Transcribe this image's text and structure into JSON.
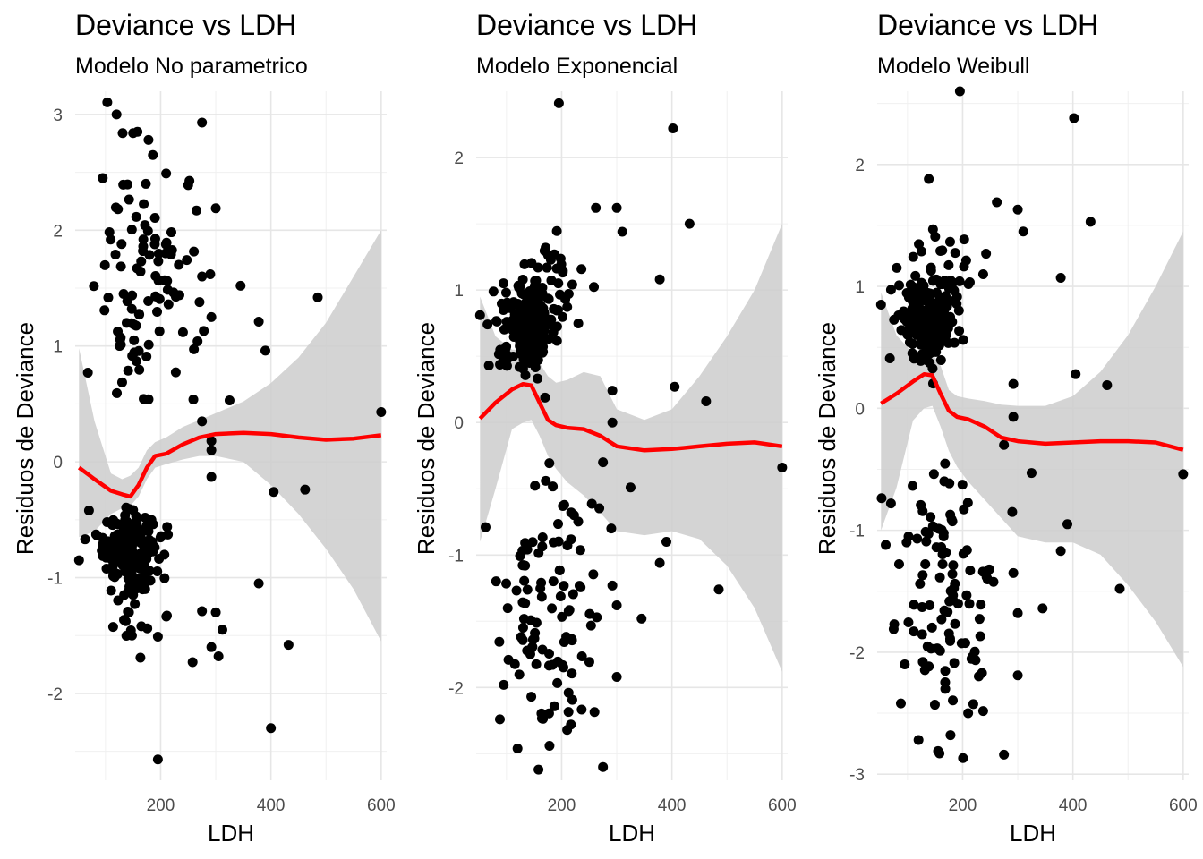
{
  "chart_data": [
    {
      "type": "scatter",
      "title": "Deviance vs  LDH",
      "subtitle": "Modelo No parametrico",
      "xlabel": "LDH",
      "ylabel": "Residuos de Deviance",
      "xlim": [
        45,
        610
      ],
      "ylim": [
        -2.75,
        3.2
      ],
      "x_ticks": [
        200,
        400,
        600
      ],
      "y_ticks": [
        -2,
        -1,
        0,
        1,
        2,
        3
      ],
      "grid": true,
      "colors": {
        "points": "#000000",
        "smooth": "#ff0000",
        "band": "#cccccc"
      },
      "clusters": [
        {
          "n": 190,
          "cx": 140,
          "sx": 22,
          "cy": -0.72,
          "sy": 0.14
        },
        {
          "n": 40,
          "cx": 160,
          "sx": 42,
          "cy": -1.05,
          "sy": 0.28
        },
        {
          "n": 70,
          "cx": 175,
          "sx": 45,
          "cy": 1.35,
          "sy": 0.5
        },
        {
          "n": 25,
          "cx": 180,
          "sx": 40,
          "cy": 2.15,
          "sy": 0.35
        }
      ],
      "points": [
        {
          "x": 52,
          "y": -0.85
        },
        {
          "x": 70,
          "y": -0.42
        },
        {
          "x": 68,
          "y": 0.77
        },
        {
          "x": 120,
          "y": 3.0
        },
        {
          "x": 275,
          "y": 2.93
        },
        {
          "x": 158,
          "y": 2.85
        },
        {
          "x": 178,
          "y": 2.78
        },
        {
          "x": 95,
          "y": 2.45
        },
        {
          "x": 210,
          "y": 2.49
        },
        {
          "x": 250,
          "y": 2.39
        },
        {
          "x": 300,
          "y": 2.19
        },
        {
          "x": 345,
          "y": 1.52
        },
        {
          "x": 485,
          "y": 1.42
        },
        {
          "x": 378,
          "y": 1.21
        },
        {
          "x": 390,
          "y": 0.96
        },
        {
          "x": 325,
          "y": 0.53
        },
        {
          "x": 275,
          "y": 0.35
        },
        {
          "x": 292,
          "y": 0.18
        },
        {
          "x": 292,
          "y": 0.1
        },
        {
          "x": 292,
          "y": -0.13
        },
        {
          "x": 600,
          "y": 0.43
        },
        {
          "x": 405,
          "y": -0.26
        },
        {
          "x": 462,
          "y": -0.24
        },
        {
          "x": 378,
          "y": -1.05
        },
        {
          "x": 432,
          "y": -1.58
        },
        {
          "x": 400,
          "y": -2.3
        },
        {
          "x": 195,
          "y": -2.57
        },
        {
          "x": 258,
          "y": -1.73
        },
        {
          "x": 305,
          "y": -1.68
        },
        {
          "x": 292,
          "y": -1.6
        },
        {
          "x": 312,
          "y": -1.45
        },
        {
          "x": 275,
          "y": -1.29
        },
        {
          "x": 300,
          "y": -1.3
        },
        {
          "x": 148,
          "y": -1.5
        },
        {
          "x": 195,
          "y": -1.51
        },
        {
          "x": 165,
          "y": -1.42
        },
        {
          "x": 292,
          "y": 1.25
        },
        {
          "x": 290,
          "y": 1.62
        },
        {
          "x": 275,
          "y": 1.6
        },
        {
          "x": 265,
          "y": 2.17
        }
      ],
      "smooth": {
        "x": [
          52,
          80,
          110,
          130,
          145,
          160,
          175,
          190,
          210,
          240,
          270,
          300,
          350,
          400,
          450,
          500,
          550,
          600
        ],
        "y": [
          -0.05,
          -0.15,
          -0.25,
          -0.28,
          -0.3,
          -0.2,
          -0.05,
          0.05,
          0.07,
          0.15,
          0.21,
          0.24,
          0.25,
          0.24,
          0.21,
          0.19,
          0.2,
          0.23
        ],
        "lo": [
          -0.65,
          -0.6,
          -0.45,
          -0.4,
          -0.38,
          -0.3,
          -0.15,
          -0.05,
          -0.02,
          0.02,
          0.05,
          0.05,
          0.0,
          -0.2,
          -0.45,
          -0.75,
          -1.1,
          -1.55
        ],
        "hi": [
          0.98,
          0.35,
          -0.1,
          -0.15,
          -0.12,
          -0.05,
          0.1,
          0.17,
          0.21,
          0.3,
          0.36,
          0.42,
          0.52,
          0.68,
          0.9,
          1.2,
          1.6,
          2.0
        ]
      }
    },
    {
      "type": "scatter",
      "title": "Deviance vs  LDH",
      "subtitle": "Modelo Exponencial",
      "xlabel": "LDH",
      "ylabel": "Residuos de Deviance",
      "xlim": [
        45,
        610
      ],
      "ylim": [
        -2.7,
        2.5
      ],
      "x_ticks": [
        200,
        400,
        600
      ],
      "y_ticks": [
        -2,
        -1,
        0,
        1,
        2
      ],
      "grid": true,
      "colors": {
        "points": "#000000",
        "smooth": "#ff0000",
        "band": "#cccccc"
      },
      "clusters": [
        {
          "n": 200,
          "cx": 140,
          "sx": 24,
          "cy": 0.72,
          "sy": 0.15
        },
        {
          "n": 45,
          "cx": 160,
          "sx": 40,
          "cy": 1.05,
          "sy": 0.22
        },
        {
          "n": 80,
          "cx": 170,
          "sx": 45,
          "cy": -1.3,
          "sy": 0.42
        },
        {
          "n": 20,
          "cx": 180,
          "sx": 40,
          "cy": -2.05,
          "sy": 0.25
        }
      ],
      "points": [
        {
          "x": 52,
          "y": 0.81
        },
        {
          "x": 68,
          "y": 0.43
        },
        {
          "x": 62,
          "y": -0.79
        },
        {
          "x": 195,
          "y": 2.41
        },
        {
          "x": 402,
          "y": 2.22
        },
        {
          "x": 432,
          "y": 1.5
        },
        {
          "x": 300,
          "y": 1.62
        },
        {
          "x": 262,
          "y": 1.62
        },
        {
          "x": 310,
          "y": 1.44
        },
        {
          "x": 378,
          "y": 1.08
        },
        {
          "x": 405,
          "y": 0.27
        },
        {
          "x": 462,
          "y": 0.16
        },
        {
          "x": 292,
          "y": 0.24
        },
        {
          "x": 292,
          "y": 0.0
        },
        {
          "x": 275,
          "y": -0.3
        },
        {
          "x": 325,
          "y": -0.49
        },
        {
          "x": 600,
          "y": -0.34
        },
        {
          "x": 390,
          "y": -0.9
        },
        {
          "x": 378,
          "y": -1.06
        },
        {
          "x": 485,
          "y": -1.26
        },
        {
          "x": 345,
          "y": -1.48
        },
        {
          "x": 275,
          "y": -2.6
        },
        {
          "x": 120,
          "y": -2.46
        },
        {
          "x": 158,
          "y": -2.62
        },
        {
          "x": 178,
          "y": -2.44
        },
        {
          "x": 210,
          "y": -2.32
        },
        {
          "x": 300,
          "y": -1.92
        },
        {
          "x": 290,
          "y": -0.8
        },
        {
          "x": 292,
          "y": -1.23
        },
        {
          "x": 300,
          "y": -1.38
        },
        {
          "x": 88,
          "y": -2.24
        },
        {
          "x": 95,
          "y": -1.98
        }
      ],
      "smooth": {
        "x": [
          52,
          80,
          110,
          130,
          145,
          160,
          175,
          190,
          210,
          240,
          270,
          300,
          350,
          400,
          450,
          500,
          550,
          600
        ],
        "y": [
          0.03,
          0.15,
          0.25,
          0.29,
          0.28,
          0.15,
          0.02,
          -0.02,
          -0.04,
          -0.05,
          -0.1,
          -0.18,
          -0.21,
          -0.2,
          -0.18,
          -0.16,
          -0.15,
          -0.18
        ],
        "lo": [
          -0.9,
          -0.5,
          -0.05,
          0.0,
          0.02,
          -0.1,
          -0.25,
          -0.35,
          -0.45,
          -0.55,
          -0.68,
          -0.82,
          -0.85,
          -0.82,
          -0.88,
          -1.08,
          -1.4,
          -1.88
        ],
        "hi": [
          0.95,
          0.65,
          0.55,
          0.55,
          0.55,
          0.45,
          0.35,
          0.3,
          0.32,
          0.38,
          0.35,
          0.1,
          0.02,
          0.1,
          0.35,
          0.65,
          1.0,
          1.5
        ]
      }
    },
    {
      "type": "scatter",
      "title": "Deviance vs  LDH",
      "subtitle": "Modelo Weibull",
      "xlabel": "LDH",
      "ylabel": "Residuos de Deviance",
      "xlim": [
        45,
        610
      ],
      "ylim": [
        -3.05,
        2.6
      ],
      "x_ticks": [
        200,
        400,
        600
      ],
      "y_ticks": [
        -3,
        -2,
        -1,
        0,
        1,
        2
      ],
      "grid": true,
      "colors": {
        "points": "#000000",
        "smooth": "#ff0000",
        "band": "#cccccc"
      },
      "clusters": [
        {
          "n": 200,
          "cx": 140,
          "sx": 24,
          "cy": 0.72,
          "sy": 0.16
        },
        {
          "n": 45,
          "cx": 160,
          "sx": 40,
          "cy": 1.05,
          "sy": 0.24
        },
        {
          "n": 80,
          "cx": 170,
          "sx": 45,
          "cy": -1.35,
          "sy": 0.45
        },
        {
          "n": 20,
          "cx": 180,
          "sx": 40,
          "cy": -2.2,
          "sy": 0.3
        }
      ],
      "points": [
        {
          "x": 52,
          "y": 0.85
        },
        {
          "x": 68,
          "y": 0.41
        },
        {
          "x": 70,
          "y": -0.78
        },
        {
          "x": 195,
          "y": 2.6
        },
        {
          "x": 402,
          "y": 2.38
        },
        {
          "x": 432,
          "y": 1.53
        },
        {
          "x": 300,
          "y": 1.63
        },
        {
          "x": 262,
          "y": 1.69
        },
        {
          "x": 310,
          "y": 1.45
        },
        {
          "x": 378,
          "y": 1.07
        },
        {
          "x": 405,
          "y": 0.28
        },
        {
          "x": 462,
          "y": 0.19
        },
        {
          "x": 292,
          "y": 0.2
        },
        {
          "x": 292,
          "y": -0.07
        },
        {
          "x": 275,
          "y": -0.3
        },
        {
          "x": 325,
          "y": -0.53
        },
        {
          "x": 600,
          "y": -0.54
        },
        {
          "x": 390,
          "y": -0.95
        },
        {
          "x": 378,
          "y": -1.17
        },
        {
          "x": 485,
          "y": -1.48
        },
        {
          "x": 345,
          "y": -1.64
        },
        {
          "x": 275,
          "y": -2.84
        },
        {
          "x": 120,
          "y": -2.72
        },
        {
          "x": 158,
          "y": -2.83
        },
        {
          "x": 178,
          "y": -2.68
        },
        {
          "x": 210,
          "y": -2.5
        },
        {
          "x": 300,
          "y": -2.19
        },
        {
          "x": 290,
          "y": -0.85
        },
        {
          "x": 292,
          "y": -1.35
        },
        {
          "x": 300,
          "y": -1.68
        },
        {
          "x": 88,
          "y": -2.42
        },
        {
          "x": 95,
          "y": -2.1
        }
      ],
      "smooth": {
        "x": [
          52,
          80,
          110,
          130,
          145,
          160,
          175,
          190,
          210,
          240,
          270,
          300,
          350,
          400,
          450,
          500,
          550,
          600
        ],
        "y": [
          0.04,
          0.12,
          0.22,
          0.28,
          0.27,
          0.12,
          -0.02,
          -0.07,
          -0.09,
          -0.15,
          -0.24,
          -0.27,
          -0.29,
          -0.28,
          -0.27,
          -0.27,
          -0.28,
          -0.34
        ],
        "lo": [
          -1.0,
          -0.65,
          -0.1,
          0.0,
          0.02,
          -0.15,
          -0.35,
          -0.48,
          -0.6,
          -0.75,
          -0.9,
          -1.05,
          -1.1,
          -1.1,
          -1.2,
          -1.45,
          -1.75,
          -2.12
        ],
        "hi": [
          0.95,
          0.6,
          0.45,
          0.45,
          0.45,
          0.35,
          0.15,
          0.1,
          0.08,
          0.06,
          0.03,
          0.02,
          0.02,
          0.1,
          0.3,
          0.6,
          1.0,
          1.45
        ]
      }
    }
  ]
}
